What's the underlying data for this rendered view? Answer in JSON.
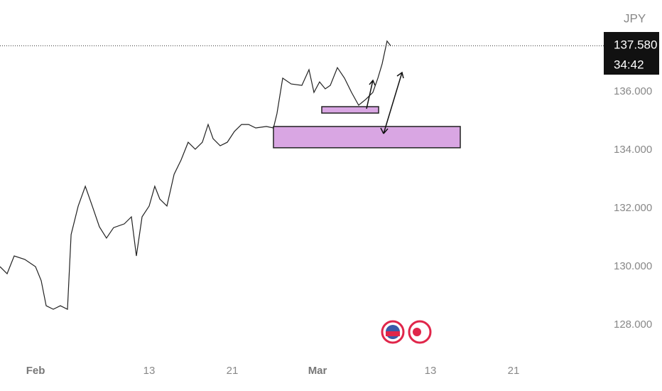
{
  "chart_data": {
    "type": "line",
    "currency": "JPY",
    "x": [
      -3.45,
      -2.76,
      -2.07,
      -1.04,
      0.0,
      0.55,
      1.03,
      1.72,
      2.41,
      3.1,
      3.45,
      4.14,
      4.83,
      5.51,
      6.2,
      6.89,
      7.58,
      8.62,
      9.31,
      9.79,
      10.34,
      11.03,
      11.58,
      12.07,
      12.76,
      13.45,
      14.13,
      14.82,
      15.51,
      16.2,
      16.76,
      17.24,
      17.93,
      18.62,
      19.31,
      20.0,
      20.69,
      21.38,
      22.41,
      23.1,
      23.44,
      24.0,
      24.82,
      25.86,
      26.55,
      27.03,
      27.58,
      28.13,
      28.62,
      29.31,
      30.0,
      30.68,
      31.37,
      32.06,
      32.75,
      33.24,
      33.65,
      34.13,
      34.48
    ],
    "series": [
      {
        "color": "#222222",
        "values": [
          130.0,
          129.76,
          130.37,
          130.25,
          130.0,
          129.52,
          128.66,
          128.54,
          128.66,
          128.54,
          131.1,
          132.08,
          132.76,
          132.08,
          131.37,
          130.98,
          131.34,
          131.47,
          131.71,
          130.37,
          131.71,
          132.08,
          132.76,
          132.32,
          132.08,
          133.17,
          133.66,
          134.27,
          134.03,
          134.27,
          134.88,
          134.39,
          134.15,
          134.27,
          134.64,
          134.88,
          134.88,
          134.76,
          134.81,
          134.76,
          135.25,
          136.47,
          136.27,
          136.22,
          136.76,
          135.98,
          136.34,
          136.1,
          136.22,
          136.83,
          136.47,
          135.98,
          135.54,
          135.74,
          135.98,
          136.47,
          136.96,
          137.74,
          137.58
        ]
      }
    ],
    "xlim": [
      -3.45,
      55.17
    ],
    "xticks": [
      {
        "value": 0.0,
        "label": "Feb"
      },
      {
        "value": 11.03,
        "label": "13"
      },
      {
        "value": 19.1,
        "label": "21"
      },
      {
        "value": 27.38,
        "label": "Mar"
      },
      {
        "value": 38.34,
        "label": "13"
      },
      {
        "value": 46.41,
        "label": "21"
      }
    ],
    "ylim": [
      126.71,
      139.15
    ],
    "yticks": [
      {
        "value": 128,
        "label": "128.000"
      },
      {
        "value": 130,
        "label": "130.000"
      },
      {
        "value": 132,
        "label": "132.000"
      },
      {
        "value": 134,
        "label": "134.000"
      },
      {
        "value": 136,
        "label": "136.000"
      }
    ],
    "last_price": {
      "value": 137.58,
      "label": "137.580"
    },
    "countdown": "34:42",
    "zones": [
      {
        "color": "#d9a6e3",
        "x": [
          23.1,
          41.24
        ],
        "y": [
          134.08,
          134.81
        ]
      },
      {
        "color": "#d9a6e3",
        "x": [
          27.79,
          33.31
        ],
        "y": [
          135.27,
          135.49
        ]
      }
    ]
  }
}
